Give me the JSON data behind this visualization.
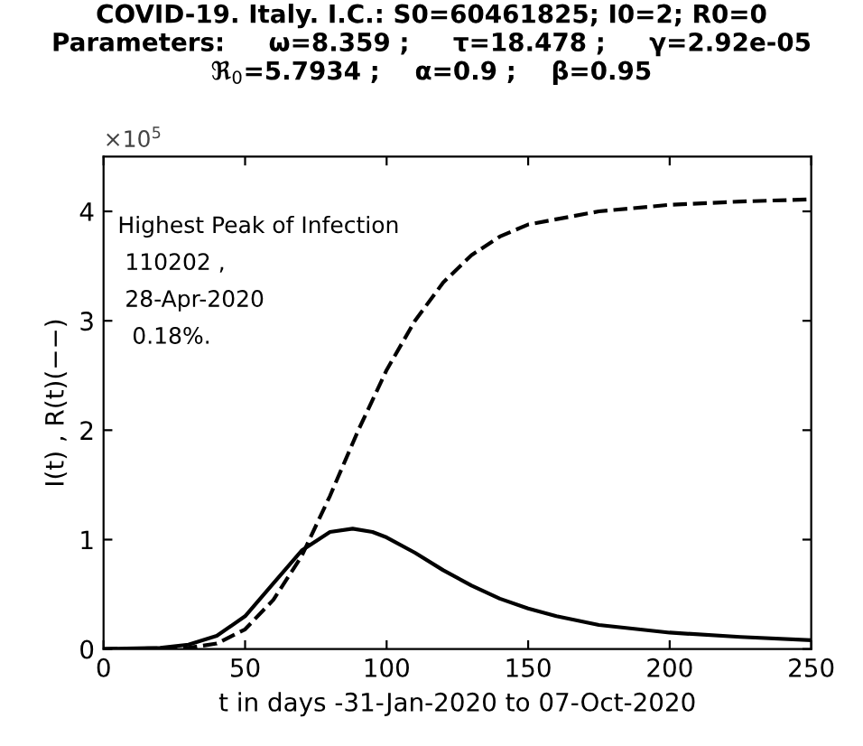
{
  "chart_data": {
    "type": "line",
    "title": "COVID-19. Italy. I.C.: S0=60461825; I0=2; R0=0\nParameters:     ω=8.359 ;     τ=18.478 ;     γ=2.92e-05\nℜ$_{0}$=5.7934 ;    α=0.9 ;    β=0.95",
    "xlabel": "t in days -31-Jan-2020 to 07-Oct-2020",
    "ylabel": "I(t) , R(t)(−−)",
    "annotations": [
      "×10$^{5}$",
      "Highest Peak of Infection",
      " 110202 ,",
      " 28-Apr-2020",
      "  0.18%."
    ],
    "xlim": [
      0,
      250
    ],
    "xticks": [
      0,
      50,
      100,
      150,
      200,
      250
    ],
    "ylim": [
      0,
      4.5
    ],
    "yticks": [
      0,
      1,
      2,
      3,
      4
    ],
    "grid": false,
    "legend": false,
    "series": [
      {
        "color": "#000000",
        "line_style": "solid",
        "x": [
          0,
          20,
          30,
          40,
          50,
          60,
          70,
          80,
          88,
          95,
          100,
          110,
          120,
          130,
          140,
          150,
          160,
          175,
          200,
          225,
          250
        ],
        "values": [
          0,
          0.01,
          0.04,
          0.12,
          0.3,
          0.6,
          0.9,
          1.07,
          1.1,
          1.07,
          1.02,
          0.88,
          0.72,
          0.58,
          0.46,
          0.37,
          0.3,
          0.22,
          0.15,
          0.11,
          0.08
        ]
      },
      {
        "color": "#000000",
        "line_style": "dashed",
        "x": [
          0,
          30,
          40,
          50,
          60,
          70,
          80,
          90,
          100,
          110,
          120,
          130,
          140,
          150,
          175,
          200,
          225,
          250
        ],
        "values": [
          0,
          0.01,
          0.05,
          0.18,
          0.45,
          0.85,
          1.4,
          2.0,
          2.55,
          3.0,
          3.35,
          3.6,
          3.77,
          3.88,
          4.0,
          4.06,
          4.09,
          4.11
        ]
      }
    ]
  }
}
